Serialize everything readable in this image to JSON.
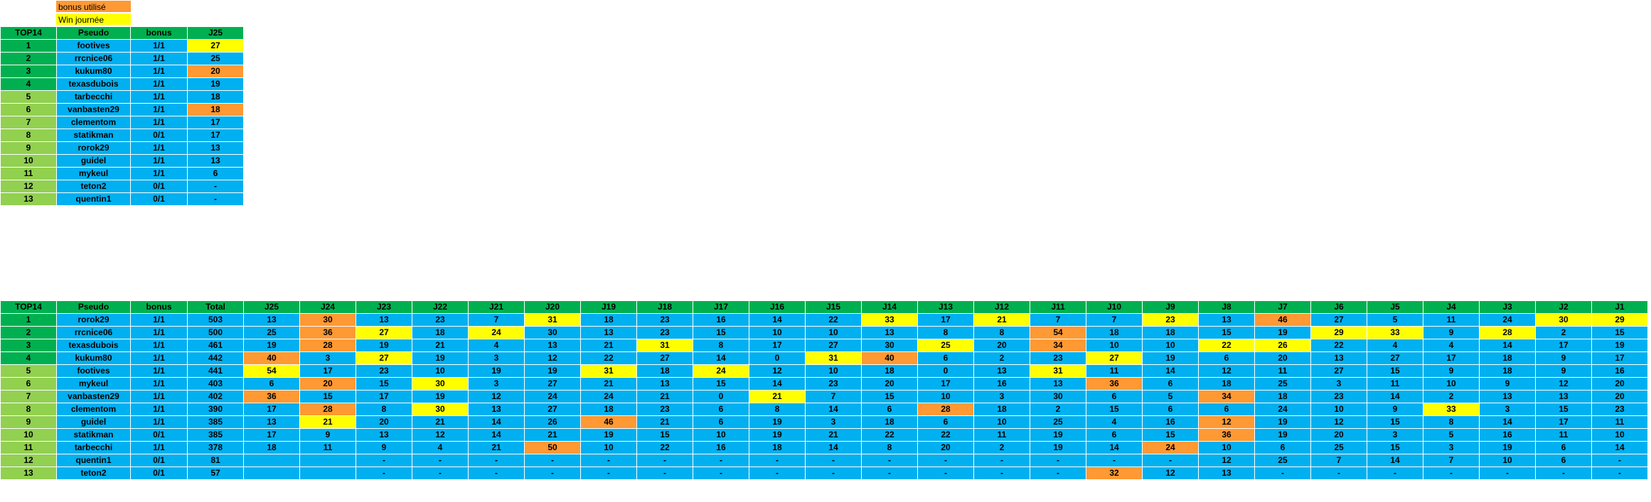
{
  "legend": [
    {
      "label": "bonus utilisé",
      "color": "#ff9933"
    },
    {
      "label": "Win journée",
      "color": "#ffff00"
    }
  ],
  "colors": {
    "header": "#00b050",
    "rank_top": "#00b050",
    "rank_low": "#92d050",
    "cell": "#00b0f0",
    "bonus_used": "#ff9933",
    "day_win": "#ffff00"
  },
  "table1": {
    "headers": [
      "TOP14",
      "Pseudo",
      "bonus",
      "J25"
    ],
    "rows": [
      {
        "rank": "1",
        "pseudo": "footives",
        "bonus": "1/1",
        "score": "27",
        "hl": "y"
      },
      {
        "rank": "2",
        "pseudo": "rrcnice06",
        "bonus": "1/1",
        "score": "25",
        "hl": ""
      },
      {
        "rank": "3",
        "pseudo": "kukum80",
        "bonus": "1/1",
        "score": "20",
        "hl": "o"
      },
      {
        "rank": "4",
        "pseudo": "texasdubois",
        "bonus": "1/1",
        "score": "19",
        "hl": ""
      },
      {
        "rank": "5",
        "pseudo": "tarbecchi",
        "bonus": "1/1",
        "score": "18",
        "hl": ""
      },
      {
        "rank": "6",
        "pseudo": "vanbasten29",
        "bonus": "1/1",
        "score": "18",
        "hl": "o"
      },
      {
        "rank": "7",
        "pseudo": "clementom",
        "bonus": "1/1",
        "score": "17",
        "hl": ""
      },
      {
        "rank": "8",
        "pseudo": "statikman",
        "bonus": "0/1",
        "score": "17",
        "hl": ""
      },
      {
        "rank": "9",
        "pseudo": "rorok29",
        "bonus": "1/1",
        "score": "13",
        "hl": ""
      },
      {
        "rank": "10",
        "pseudo": "guidel",
        "bonus": "1/1",
        "score": "13",
        "hl": ""
      },
      {
        "rank": "11",
        "pseudo": "mykeul",
        "bonus": "1/1",
        "score": "6",
        "hl": ""
      },
      {
        "rank": "12",
        "pseudo": "teton2",
        "bonus": "0/1",
        "score": "-",
        "hl": ""
      },
      {
        "rank": "13",
        "pseudo": "quentin1",
        "bonus": "0/1",
        "score": "-",
        "hl": ""
      }
    ]
  },
  "table2": {
    "headers": [
      "TOP14",
      "Pseudo",
      "bonus",
      "Total",
      "J25",
      "J24",
      "J23",
      "J22",
      "J21",
      "J20",
      "J19",
      "J18",
      "J17",
      "J16",
      "J15",
      "J14",
      "J13",
      "J12",
      "J11",
      "J10",
      "J9",
      "J8",
      "J7",
      "J6",
      "J5",
      "J4",
      "J3",
      "J2",
      "J1"
    ],
    "rows": [
      {
        "rank": "1",
        "pseudo": "rorok29",
        "bonus": "1/1",
        "total": "503",
        "scores": [
          "13",
          "30",
          "13",
          "23",
          "7",
          "31",
          "18",
          "23",
          "16",
          "14",
          "22",
          "33",
          "17",
          "21",
          "7",
          "7",
          "23",
          "13",
          "46",
          "27",
          "5",
          "11",
          "24",
          "30",
          "29"
        ],
        "hl": [
          "",
          "o",
          "",
          "",
          "",
          "y",
          "",
          "",
          "",
          "",
          "",
          "y",
          "",
          "y",
          "",
          "",
          "y",
          "",
          "o",
          "",
          "",
          "",
          "",
          "y",
          "y"
        ]
      },
      {
        "rank": "2",
        "pseudo": "rrcnice06",
        "bonus": "1/1",
        "total": "500",
        "scores": [
          "25",
          "36",
          "27",
          "18",
          "24",
          "30",
          "13",
          "23",
          "15",
          "10",
          "10",
          "13",
          "8",
          "8",
          "54",
          "18",
          "18",
          "15",
          "19",
          "29",
          "33",
          "9",
          "28",
          "2",
          "15"
        ],
        "hl": [
          "",
          "o",
          "y",
          "",
          "y",
          "",
          "",
          "",
          "",
          "",
          "",
          "",
          "",
          "",
          "o",
          "",
          "",
          "",
          "",
          "y",
          "y",
          "",
          "y",
          "",
          ""
        ]
      },
      {
        "rank": "3",
        "pseudo": "texasdubois",
        "bonus": "1/1",
        "total": "461",
        "scores": [
          "19",
          "28",
          "19",
          "21",
          "4",
          "13",
          "21",
          "31",
          "8",
          "17",
          "27",
          "30",
          "25",
          "20",
          "34",
          "10",
          "10",
          "22",
          "26",
          "22",
          "4",
          "4",
          "14",
          "17",
          "19"
        ],
        "hl": [
          "",
          "o",
          "",
          "",
          "",
          "",
          "",
          "y",
          "",
          "",
          "",
          "",
          "y",
          "",
          "o",
          "",
          "",
          "y",
          "y",
          "",
          "",
          "",
          "",
          "",
          ""
        ]
      },
      {
        "rank": "4",
        "pseudo": "kukum80",
        "bonus": "1/1",
        "total": "442",
        "scores": [
          "40",
          "3",
          "27",
          "19",
          "3",
          "12",
          "22",
          "27",
          "14",
          "0",
          "31",
          "40",
          "6",
          "2",
          "23",
          "27",
          "19",
          "6",
          "20",
          "13",
          "27",
          "17",
          "18",
          "9",
          "17"
        ],
        "hl": [
          "o",
          "",
          "y",
          "",
          "",
          "",
          "",
          "",
          "",
          "",
          "y",
          "o",
          "",
          "",
          "",
          "y",
          "",
          "",
          "",
          "",
          "",
          "",
          "",
          "",
          ""
        ]
      },
      {
        "rank": "5",
        "pseudo": "footives",
        "bonus": "1/1",
        "total": "441",
        "scores": [
          "54",
          "17",
          "23",
          "10",
          "19",
          "19",
          "31",
          "18",
          "24",
          "12",
          "10",
          "18",
          "0",
          "13",
          "31",
          "11",
          "14",
          "12",
          "11",
          "27",
          "15",
          "9",
          "18",
          "9",
          "16"
        ],
        "hl": [
          "y",
          "",
          "",
          "",
          "",
          "",
          "y",
          "",
          "y",
          "",
          "",
          "",
          "",
          "",
          "y",
          "",
          "",
          "",
          "",
          "",
          "",
          "",
          "",
          "",
          ""
        ]
      },
      {
        "rank": "6",
        "pseudo": "mykeul",
        "bonus": "1/1",
        "total": "403",
        "scores": [
          "6",
          "20",
          "15",
          "30",
          "3",
          "27",
          "21",
          "13",
          "15",
          "14",
          "23",
          "20",
          "17",
          "16",
          "13",
          "36",
          "6",
          "18",
          "25",
          "3",
          "11",
          "10",
          "9",
          "12",
          "20"
        ],
        "hl": [
          "",
          "o",
          "",
          "y",
          "",
          "",
          "",
          "",
          "",
          "",
          "",
          "",
          "",
          "",
          "",
          "o",
          "",
          "",
          "",
          "",
          "",
          "",
          "",
          "",
          ""
        ]
      },
      {
        "rank": "7",
        "pseudo": "vanbasten29",
        "bonus": "1/1",
        "total": "402",
        "scores": [
          "36",
          "15",
          "17",
          "19",
          "12",
          "24",
          "24",
          "21",
          "0",
          "21",
          "7",
          "15",
          "10",
          "3",
          "30",
          "6",
          "5",
          "34",
          "18",
          "23",
          "14",
          "2",
          "13",
          "13",
          "20"
        ],
        "hl": [
          "o",
          "",
          "",
          "",
          "",
          "",
          "",
          "",
          "",
          "y",
          "",
          "",
          "",
          "",
          "",
          "",
          "",
          "o",
          "",
          "",
          "",
          "",
          "",
          "",
          ""
        ]
      },
      {
        "rank": "8",
        "pseudo": "clementom",
        "bonus": "1/1",
        "total": "390",
        "scores": [
          "17",
          "28",
          "8",
          "30",
          "13",
          "27",
          "18",
          "23",
          "6",
          "8",
          "14",
          "6",
          "28",
          "18",
          "2",
          "15",
          "6",
          "6",
          "24",
          "10",
          "9",
          "33",
          "3",
          "15",
          "23"
        ],
        "hl": [
          "",
          "o",
          "",
          "y",
          "",
          "",
          "",
          "",
          "",
          "",
          "",
          "",
          "o",
          "",
          "",
          "",
          "",
          "",
          "",
          "",
          "",
          "y",
          "",
          "",
          ""
        ]
      },
      {
        "rank": "9",
        "pseudo": "guidel",
        "bonus": "1/1",
        "total": "385",
        "scores": [
          "13",
          "21",
          "20",
          "21",
          "14",
          "26",
          "46",
          "21",
          "6",
          "19",
          "3",
          "18",
          "6",
          "10",
          "25",
          "4",
          "16",
          "12",
          "19",
          "12",
          "15",
          "8",
          "14",
          "17",
          "11"
        ],
        "hl": [
          "",
          "y",
          "",
          "",
          "",
          "",
          "o",
          "",
          "",
          "",
          "",
          "",
          "",
          "",
          "",
          "",
          "",
          "o",
          "",
          "",
          "",
          "",
          "",
          "",
          ""
        ]
      },
      {
        "rank": "10",
        "pseudo": "statikman",
        "bonus": "0/1",
        "total": "385",
        "scores": [
          "17",
          "9",
          "13",
          "12",
          "14",
          "21",
          "19",
          "15",
          "10",
          "19",
          "21",
          "22",
          "22",
          "11",
          "19",
          "6",
          "15",
          "36",
          "19",
          "20",
          "3",
          "5",
          "16",
          "11",
          "10"
        ],
        "hl": [
          "",
          "",
          "",
          "",
          "",
          "",
          "",
          "",
          "",
          "",
          "",
          "",
          "",
          "",
          "",
          "",
          "",
          "o",
          "",
          "",
          "",
          "",
          "",
          "",
          ""
        ]
      },
      {
        "rank": "11",
        "pseudo": "tarbecchi",
        "bonus": "1/1",
        "total": "378",
        "scores": [
          "18",
          "11",
          "9",
          "4",
          "21",
          "50",
          "10",
          "22",
          "16",
          "18",
          "14",
          "8",
          "20",
          "2",
          "19",
          "14",
          "24",
          "10",
          "6",
          "25",
          "15",
          "3",
          "19",
          "6",
          "14"
        ],
        "hl": [
          "",
          "",
          "",
          "",
          "",
          "o",
          "",
          "",
          "",
          "",
          "",
          "",
          "",
          "",
          "",
          "",
          "o",
          "",
          "",
          "",
          "",
          "",
          "",
          "",
          ""
        ]
      },
      {
        "rank": "12",
        "pseudo": "quentin1",
        "bonus": "0/1",
        "total": "81",
        "scores": [
          "",
          "",
          "-",
          "-",
          "-",
          "-",
          "-",
          "-",
          "-",
          "-",
          "-",
          "-",
          "-",
          "-",
          "-",
          "-",
          "-",
          "12",
          "25",
          "7",
          "14",
          "7",
          "10",
          "6",
          "-"
        ],
        "hl": [
          "",
          "",
          "",
          "",
          "",
          "",
          "",
          "",
          "",
          "",
          "",
          "",
          "",
          "",
          "",
          "",
          "",
          "",
          "",
          "",
          "",
          "",
          "",
          "",
          ""
        ]
      },
      {
        "rank": "13",
        "pseudo": "teton2",
        "bonus": "0/1",
        "total": "57",
        "scores": [
          "",
          "",
          "-",
          "-",
          "-",
          "-",
          "-",
          "-",
          "-",
          "-",
          "-",
          "-",
          "-",
          "-",
          "-",
          "32",
          "12",
          "13",
          "-",
          "-",
          "-",
          "-",
          "-",
          "-",
          "-"
        ],
        "hl": [
          "",
          "",
          "",
          "",
          "",
          "",
          "",
          "",
          "",
          "",
          "",
          "",
          "",
          "",
          "",
          "o",
          "",
          "",
          "",
          "",
          "",
          "",
          "",
          "",
          ""
        ]
      }
    ]
  }
}
